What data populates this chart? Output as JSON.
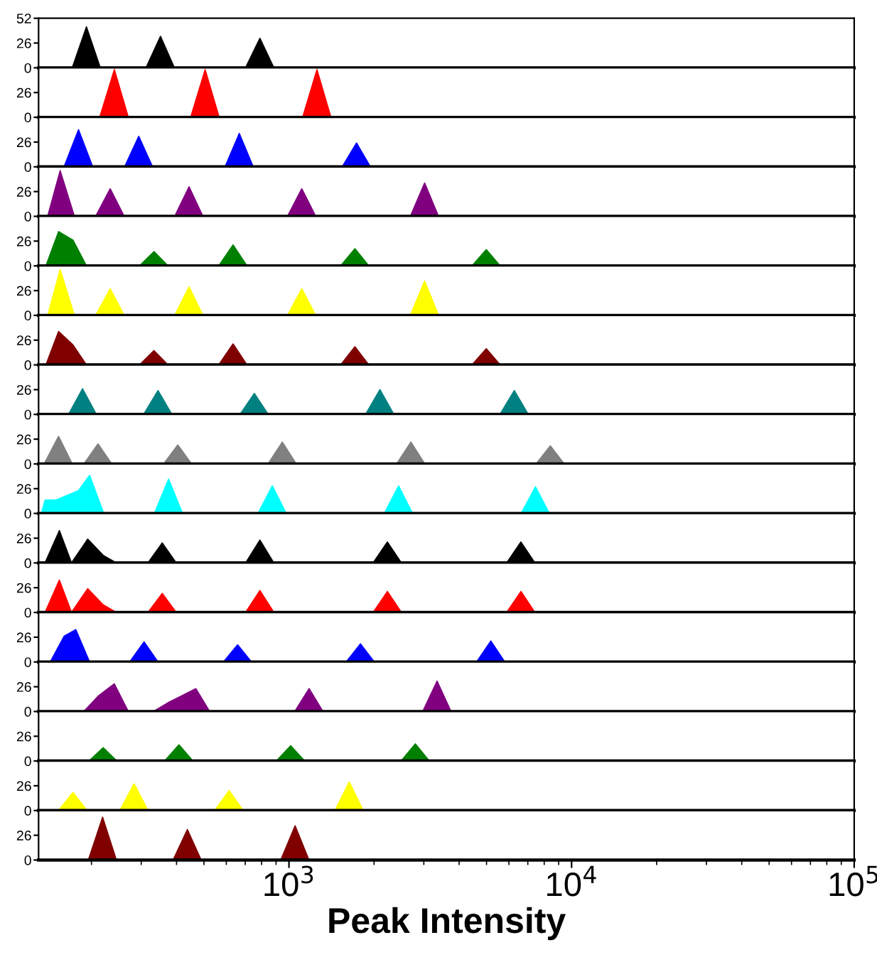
{
  "chart_data": [
    {
      "type": "area",
      "color": "#000000",
      "x": [
        171,
        192,
        215,
        312,
        351,
        393,
        702,
        789,
        884
      ],
      "values": [
        0,
        43,
        0,
        0,
        33,
        0,
        0,
        31,
        0
      ],
      "xlim": [
        130,
        100000
      ],
      "ylim": [
        0,
        52
      ],
      "yticks": [
        0,
        26,
        52
      ],
      "log": "x",
      "tick_labels": "y"
    },
    {
      "type": "area",
      "color": "#ff0000",
      "x": [
        214,
        241,
        270,
        449,
        505,
        566,
        1118,
        1256,
        1407
      ],
      "values": [
        0,
        50,
        0,
        0,
        50,
        0,
        0,
        50,
        0
      ],
      "xlim": [
        130,
        100000
      ],
      "ylim": [
        0,
        52
      ],
      "yticks": [
        0,
        26
      ],
      "log": "x",
      "tick_labels": "y"
    },
    {
      "type": "area",
      "color": "#0000ff",
      "x": [
        160,
        180,
        202,
        262,
        294,
        329,
        594,
        667,
        747,
        1543,
        1734,
        1942
      ],
      "values": [
        0,
        39,
        0,
        0,
        32,
        0,
        0,
        35,
        0,
        0,
        25,
        0
      ],
      "xlim": [
        130,
        100000
      ],
      "ylim": [
        0,
        52
      ],
      "yticks": [
        0,
        26
      ],
      "log": "x",
      "tick_labels": "y"
    },
    {
      "type": "area",
      "color": "#800080",
      "x": [
        140,
        155,
        174,
        207,
        233,
        261,
        394,
        443,
        496,
        988,
        1110,
        1243,
        2688,
        3020,
        3382
      ],
      "values": [
        0,
        48,
        0,
        0,
        29,
        0,
        0,
        31,
        0,
        0,
        29,
        0,
        0,
        35,
        0
      ],
      "xlim": [
        130,
        100000
      ],
      "ylim": [
        0,
        52
      ],
      "yticks": [
        0,
        26
      ],
      "log": "x",
      "tick_labels": "y"
    },
    {
      "type": "area",
      "color": "#008000",
      "x": [
        138,
        153,
        172,
        192,
        296,
        333,
        373,
        564,
        634,
        710,
        1523,
        1711,
        1916,
        4441,
        4990,
        5589
      ],
      "values": [
        0,
        36,
        27,
        0,
        0,
        15,
        0,
        0,
        22,
        0,
        0,
        18,
        0,
        0,
        17,
        0
      ],
      "xlim": [
        130,
        100000
      ],
      "ylim": [
        0,
        52
      ],
      "yticks": [
        0,
        26
      ],
      "log": "x",
      "tick_labels": "y"
    },
    {
      "type": "area",
      "color": "#ffff00",
      "x": [
        140,
        155,
        174,
        207,
        233,
        261,
        394,
        443,
        496,
        988,
        1110,
        1243,
        2688,
        3020,
        3382
      ],
      "values": [
        0,
        48,
        0,
        0,
        28,
        0,
        0,
        30,
        0,
        0,
        28,
        0,
        0,
        36,
        0
      ],
      "xlim": [
        130,
        100000
      ],
      "ylim": [
        0,
        52
      ],
      "yticks": [
        0,
        26
      ],
      "log": "x",
      "tick_labels": "y"
    },
    {
      "type": "area",
      "color": "#800000",
      "x": [
        138,
        153,
        172,
        192,
        296,
        333,
        373,
        564,
        634,
        710,
        1523,
        1711,
        1916,
        4441,
        4990,
        5589
      ],
      "values": [
        0,
        35,
        21,
        0,
        0,
        15,
        0,
        0,
        22,
        0,
        0,
        19,
        0,
        0,
        17,
        0
      ],
      "xlim": [
        130,
        100000
      ],
      "ylim": [
        0,
        52
      ],
      "yticks": [
        0,
        26
      ],
      "log": "x",
      "tick_labels": "y"
    },
    {
      "type": "area",
      "color": "#008080",
      "x": [
        166,
        186,
        208,
        306,
        344,
        385,
        671,
        754,
        844,
        1867,
        2098,
        2350,
        5580,
        6270,
        7022
      ],
      "values": [
        0,
        27,
        0,
        0,
        25,
        0,
        0,
        22,
        0,
        0,
        26,
        0,
        0,
        25,
        0
      ],
      "xlim": [
        130,
        100000
      ],
      "ylim": [
        0,
        52
      ],
      "yticks": [
        0,
        26
      ],
      "log": "x",
      "tick_labels": "y"
    },
    {
      "type": "area",
      "color": "#808080",
      "x": [
        136,
        153,
        171,
        188,
        211,
        236,
        360,
        404,
        452,
        843,
        947,
        1061,
        2403,
        2700,
        3024,
        7485,
        8410,
        9419
      ],
      "values": [
        0,
        29,
        0,
        0,
        21,
        0,
        0,
        20,
        0,
        0,
        23,
        0,
        0,
        23,
        0,
        0,
        19,
        0
      ],
      "xlim": [
        130,
        100000
      ],
      "ylim": [
        0,
        52
      ],
      "yticks": [
        0,
        26
      ],
      "log": "x",
      "tick_labels": "y"
    },
    {
      "type": "area",
      "color": "#00ffff",
      "x": [
        133,
        137,
        150,
        180,
        197,
        221,
        334,
        375,
        420,
        777,
        873,
        978,
        2174,
        2443,
        2736,
        6631,
        7450,
        8344
      ],
      "values": [
        0,
        14,
        14,
        24,
        40,
        0,
        0,
        36,
        0,
        0,
        29,
        0,
        0,
        29,
        0,
        0,
        28,
        0
      ],
      "xlim": [
        130,
        100000
      ],
      "ylim": [
        0,
        52
      ],
      "yticks": [
        0,
        26
      ],
      "log": "x",
      "tick_labels": "y"
    },
    {
      "type": "area",
      "color": "#000000",
      "x": [
        137,
        154,
        170,
        194,
        220,
        245,
        317,
        356,
        399,
        702,
        789,
        884,
        1985,
        2230,
        2498,
        5892,
        6620,
        7414
      ],
      "values": [
        0,
        34,
        0,
        25,
        8,
        0,
        0,
        21,
        0,
        0,
        24,
        0,
        0,
        22,
        0,
        0,
        22,
        0
      ],
      "xlim": [
        130,
        100000
      ],
      "ylim": [
        0,
        52
      ],
      "yticks": [
        0,
        26
      ],
      "log": "x",
      "tick_labels": "y"
    },
    {
      "type": "area",
      "color": "#ff0000",
      "x": [
        137,
        154,
        170,
        194,
        220,
        245,
        317,
        356,
        399,
        702,
        789,
        884,
        1985,
        2230,
        2498,
        5892,
        6620,
        7414
      ],
      "values": [
        0,
        34,
        0,
        25,
        8,
        0,
        0,
        20,
        0,
        0,
        23,
        0,
        0,
        22,
        0,
        0,
        22,
        0
      ],
      "xlim": [
        130,
        100000
      ],
      "ylim": [
        0,
        52
      ],
      "yticks": [
        0,
        26
      ],
      "log": "x",
      "tick_labels": "y"
    },
    {
      "type": "area",
      "color": "#0000ff",
      "x": [
        143,
        160,
        176,
        197,
        273,
        307,
        344,
        586,
        658,
        737,
        1593,
        1790,
        2005,
        4610,
        5180,
        5802
      ],
      "values": [
        0,
        27,
        34,
        0,
        0,
        21,
        0,
        0,
        18,
        0,
        0,
        19,
        0,
        0,
        22,
        0
      ],
      "xlim": [
        130,
        100000
      ],
      "ylim": [
        0,
        52
      ],
      "yticks": [
        0,
        26
      ],
      "log": "x",
      "tick_labels": "y"
    },
    {
      "type": "area",
      "color": "#800080",
      "x": [
        188,
        211,
        241,
        270,
        331,
        372,
        468,
        524,
        1048,
        1178,
        1319,
        2974,
        3342,
        3743
      ],
      "values": [
        0,
        16,
        29,
        0,
        0,
        9,
        24,
        0,
        0,
        24,
        0,
        0,
        32,
        0
      ],
      "xlim": [
        130,
        100000
      ],
      "ylim": [
        0,
        52
      ],
      "yticks": [
        0,
        26
      ],
      "log": "x",
      "tick_labels": "y"
    },
    {
      "type": "area",
      "color": "#008000",
      "x": [
        196,
        220,
        246,
        363,
        408,
        457,
        902,
        1014,
        1136,
        2492,
        2800,
        3136
      ],
      "values": [
        0,
        14,
        0,
        0,
        17,
        0,
        0,
        16,
        0,
        0,
        18,
        0
      ],
      "xlim": [
        130,
        100000
      ],
      "ylim": [
        0,
        52
      ],
      "yticks": [
        0,
        26
      ],
      "log": "x",
      "tick_labels": "y"
    },
    {
      "type": "area",
      "color": "#ffff00",
      "x": [
        153,
        172,
        193,
        252,
        283,
        317,
        546,
        614,
        688,
        1454,
        1634,
        1830
      ],
      "values": [
        0,
        19,
        0,
        0,
        28,
        0,
        0,
        21,
        0,
        0,
        30,
        0
      ],
      "xlim": [
        130,
        100000
      ],
      "ylim": [
        0,
        52
      ],
      "yticks": [
        0,
        26
      ],
      "log": "x",
      "tick_labels": "y"
    },
    {
      "type": "area",
      "color": "#800000",
      "x": [
        195,
        219,
        245,
        389,
        437,
        489,
        935,
        1051,
        1177
      ],
      "values": [
        0,
        45,
        0,
        0,
        32,
        0,
        0,
        36,
        0
      ],
      "xlim": [
        130,
        100000
      ],
      "ylim": [
        0,
        52
      ],
      "yticks": [
        0,
        26
      ],
      "log": "x",
      "xticks": [
        {
          "value": 1000,
          "label": "10$^{3}$"
        },
        {
          "value": 10000,
          "label": "10$^{4}$"
        },
        {
          "value": 100000,
          "label": "10$^{5}$"
        }
      ],
      "xlabel": "Peak Intensity"
    }
  ]
}
